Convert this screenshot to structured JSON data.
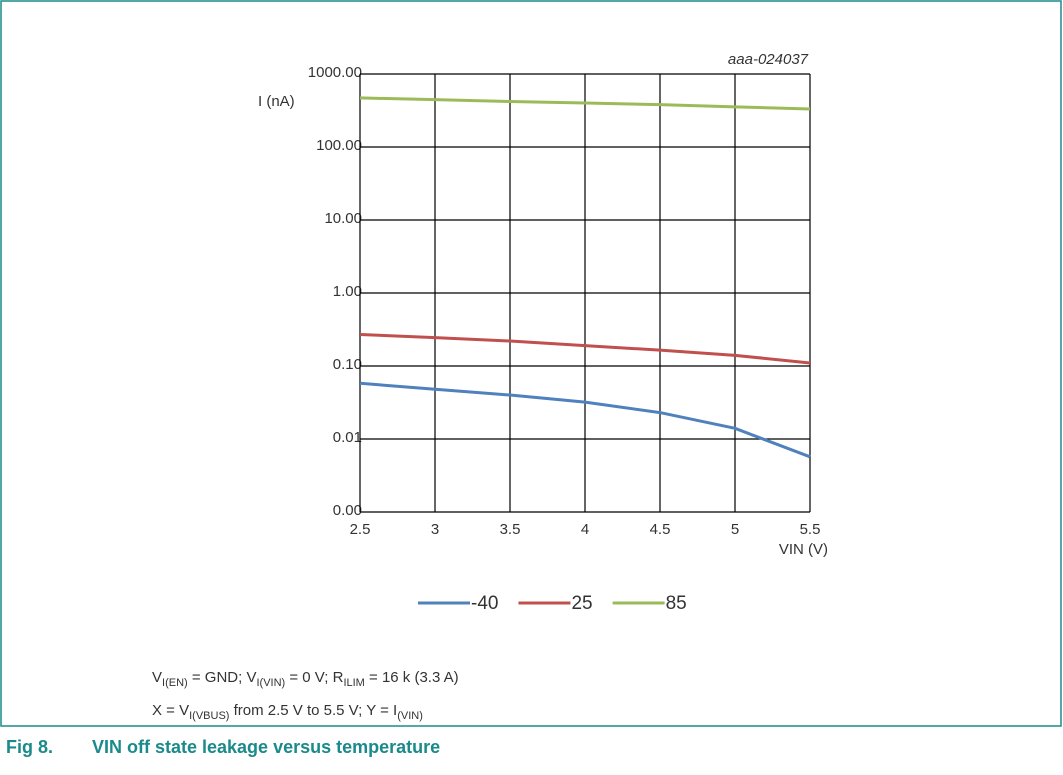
{
  "chart_data": {
    "type": "line",
    "annotation": "aaa-024037",
    "ylabel": "I (nA)",
    "xlabel": "VIN (V)",
    "x": [
      2.5,
      3,
      3.5,
      4,
      4.5,
      5,
      5.5
    ],
    "series": [
      {
        "name": "-40",
        "color": "#4f81bd",
        "values": [
          0.058,
          0.048,
          0.04,
          0.032,
          0.023,
          0.014,
          0.0057
        ]
      },
      {
        "name": "25",
        "color": "#c0504d",
        "values": [
          0.27,
          0.245,
          0.22,
          0.19,
          0.165,
          0.14,
          0.11
        ]
      },
      {
        "name": "85",
        "color": "#9bbb59",
        "values": [
          470,
          445,
          420,
          400,
          380,
          355,
          332
        ]
      }
    ],
    "xlim": [
      2.5,
      5.5
    ],
    "xticks": [
      2.5,
      3,
      3.5,
      4,
      4.5,
      5,
      5.5
    ],
    "ylim": [
      0.001,
      1000
    ],
    "log_y": true,
    "grid": true,
    "legend": "bottom",
    "yticks": [
      {
        "value": 0.001,
        "label": "0.00"
      },
      {
        "value": 0.01,
        "label": "0.01"
      },
      {
        "value": 0.1,
        "label": "0.10"
      },
      {
        "value": 1,
        "label": "1.00"
      },
      {
        "value": 10,
        "label": "10.00"
      },
      {
        "value": 100,
        "label": "100.00"
      },
      {
        "value": 1000,
        "label": "1000.00"
      }
    ]
  },
  "figure": {
    "number": "Fig 8.",
    "title": "VIN off state leakage versus temperature",
    "notes": [
      [
        {
          "text": "V"
        },
        {
          "sub": "I(EN)"
        },
        {
          "text": " = GND; V"
        },
        {
          "sub": "I(VIN)"
        },
        {
          "text": " = 0 V; R"
        },
        {
          "sub": "ILIM"
        },
        {
          "text": " = 16 k (3.3 A)"
        }
      ],
      [
        {
          "text": "X = V"
        },
        {
          "sub": "I(VBUS)"
        },
        {
          "text": " from 2.5 V to 5.5 V; Y = I"
        },
        {
          "sub": "(VIN)"
        }
      ]
    ]
  }
}
